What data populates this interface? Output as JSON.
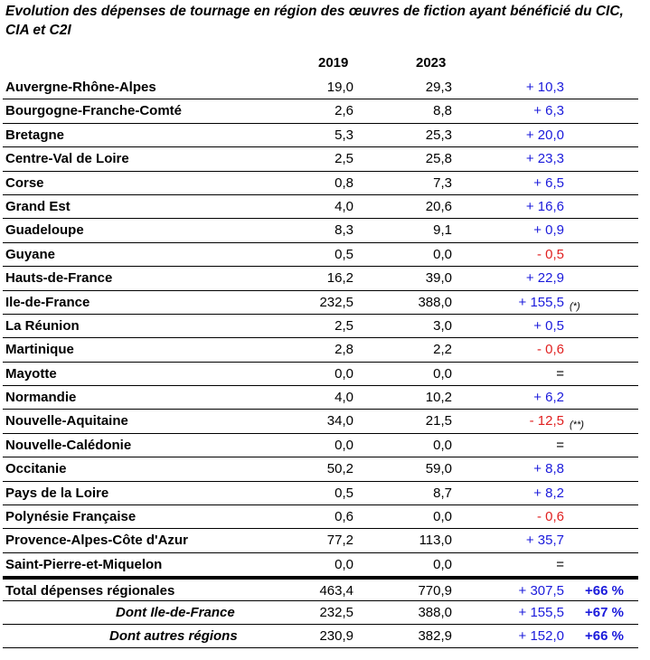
{
  "title": "Evolution des dépenses de tournage en région des œuvres de fiction ayant bénéficié du CIC, CIA et C2I",
  "headers": {
    "y1": "2019",
    "y2": "2023"
  },
  "rows": [
    {
      "name": "Auvergne-Rhône-Alpes",
      "v2019": "19,0",
      "v2023": "29,3",
      "diff": "+ 10,3",
      "sign": "pos",
      "note": ""
    },
    {
      "name": "Bourgogne-Franche-Comté",
      "v2019": "2,6",
      "v2023": "8,8",
      "diff": "+ 6,3",
      "sign": "pos",
      "note": ""
    },
    {
      "name": "Bretagne",
      "v2019": "5,3",
      "v2023": "25,3",
      "diff": "+ 20,0",
      "sign": "pos",
      "note": ""
    },
    {
      "name": "Centre-Val de Loire",
      "v2019": "2,5",
      "v2023": "25,8",
      "diff": "+ 23,3",
      "sign": "pos",
      "note": ""
    },
    {
      "name": "Corse",
      "v2019": "0,8",
      "v2023": "7,3",
      "diff": "+ 6,5",
      "sign": "pos",
      "note": ""
    },
    {
      "name": "Grand Est",
      "v2019": "4,0",
      "v2023": "20,6",
      "diff": "+ 16,6",
      "sign": "pos",
      "note": ""
    },
    {
      "name": "Guadeloupe",
      "v2019": "8,3",
      "v2023": "9,1",
      "diff": "+ 0,9",
      "sign": "pos",
      "note": ""
    },
    {
      "name": "Guyane",
      "v2019": "0,5",
      "v2023": "0,0",
      "diff": "- 0,5",
      "sign": "neg",
      "note": ""
    },
    {
      "name": "Hauts-de-France",
      "v2019": "16,2",
      "v2023": "39,0",
      "diff": "+ 22,9",
      "sign": "pos",
      "note": ""
    },
    {
      "name": "Ile-de-France",
      "v2019": "232,5",
      "v2023": "388,0",
      "diff": "+ 155,5",
      "sign": "pos",
      "note": "(*)"
    },
    {
      "name": "La Réunion",
      "v2019": "2,5",
      "v2023": "3,0",
      "diff": "+ 0,5",
      "sign": "pos",
      "note": ""
    },
    {
      "name": "Martinique",
      "v2019": "2,8",
      "v2023": "2,2",
      "diff": "- 0,6",
      "sign": "neg",
      "note": ""
    },
    {
      "name": "Mayotte",
      "v2019": "0,0",
      "v2023": "0,0",
      "diff": "=",
      "sign": "eq",
      "note": ""
    },
    {
      "name": "Normandie",
      "v2019": "4,0",
      "v2023": "10,2",
      "diff": "+ 6,2",
      "sign": "pos",
      "note": ""
    },
    {
      "name": "Nouvelle-Aquitaine",
      "v2019": "34,0",
      "v2023": "21,5",
      "diff": "- 12,5",
      "sign": "neg",
      "note": "(**)"
    },
    {
      "name": "Nouvelle-Calédonie",
      "v2019": "0,0",
      "v2023": "0,0",
      "diff": "=",
      "sign": "eq",
      "note": ""
    },
    {
      "name": "Occitanie",
      "v2019": "50,2",
      "v2023": "59,0",
      "diff": "+ 8,8",
      "sign": "pos",
      "note": ""
    },
    {
      "name": "Pays de la Loire",
      "v2019": "0,5",
      "v2023": "8,7",
      "diff": "+ 8,2",
      "sign": "pos",
      "note": ""
    },
    {
      "name": "Polynésie Française",
      "v2019": "0,6",
      "v2023": "0,0",
      "diff": "- 0,6",
      "sign": "neg",
      "note": ""
    },
    {
      "name": "Provence-Alpes-Côte d'Azur",
      "v2019": "77,2",
      "v2023": "113,0",
      "diff": "+ 35,7",
      "sign": "pos",
      "note": ""
    },
    {
      "name": "Saint-Pierre-et-Miquelon",
      "v2019": "0,0",
      "v2023": "0,0",
      "diff": "=",
      "sign": "eq",
      "note": ""
    }
  ],
  "totals": [
    {
      "name": "Total dépenses régionales",
      "v2019": "463,4",
      "v2023": "770,9",
      "diff": "+ 307,5",
      "pct": "+66 %"
    },
    {
      "name": "Dont Ile-de-France",
      "v2019": "232,5",
      "v2023": "388,0",
      "diff": "+ 155,5",
      "pct": "+67 %"
    },
    {
      "name": "Dont autres régions",
      "v2019": "230,9",
      "v2023": "382,9",
      "diff": "+ 152,0",
      "pct": "+66 %"
    }
  ]
}
